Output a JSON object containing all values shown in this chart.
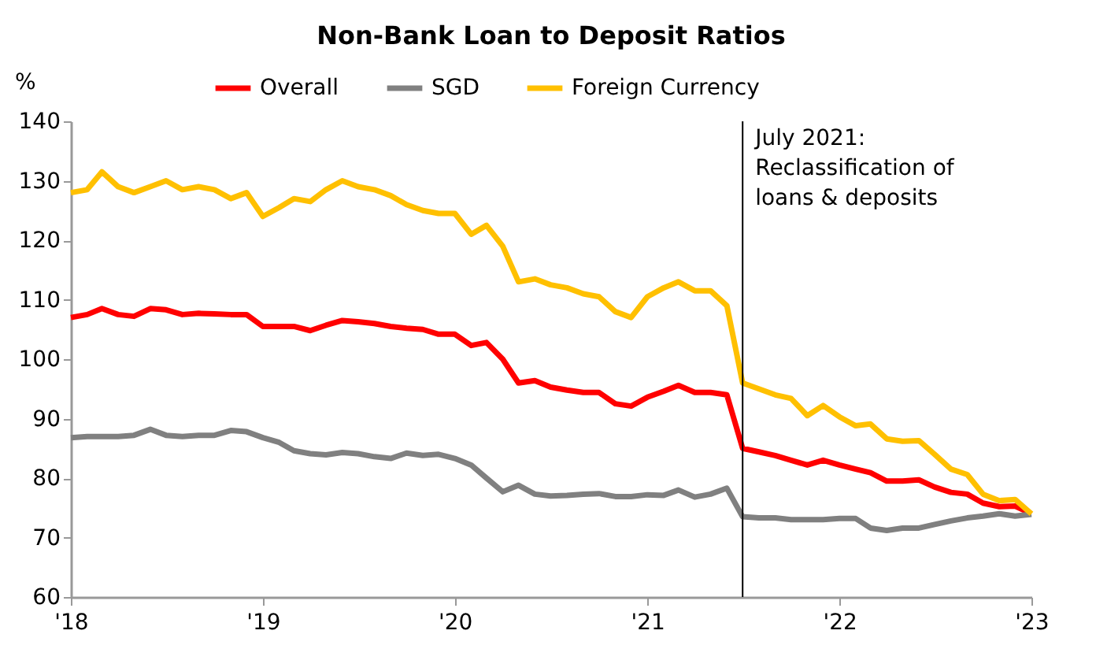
{
  "chart_data": {
    "type": "line",
    "title": "Non-Bank Loan to Deposit Ratios",
    "ylabel": "%",
    "x": [
      "2018-01",
      "2018-02",
      "2018-03",
      "2018-04",
      "2018-05",
      "2018-06",
      "2018-07",
      "2018-08",
      "2018-09",
      "2018-10",
      "2018-11",
      "2018-12",
      "2019-01",
      "2019-02",
      "2019-03",
      "2019-04",
      "2019-05",
      "2019-06",
      "2019-07",
      "2019-08",
      "2019-09",
      "2019-10",
      "2019-11",
      "2019-12",
      "2020-01",
      "2020-02",
      "2020-03",
      "2020-04",
      "2020-05",
      "2020-06",
      "2020-07",
      "2020-08",
      "2020-09",
      "2020-10",
      "2020-11",
      "2020-12",
      "2021-01",
      "2021-02",
      "2021-03",
      "2021-04",
      "2021-05",
      "2021-06",
      "2021-07",
      "2021-08",
      "2021-09",
      "2021-10",
      "2021-11",
      "2021-12",
      "2022-01",
      "2022-02",
      "2022-03",
      "2022-04",
      "2022-05",
      "2022-06",
      "2022-07",
      "2022-08",
      "2022-09",
      "2022-10",
      "2022-11",
      "2022-12",
      "2023-01"
    ],
    "series": [
      {
        "name": "Overall",
        "color": "#ff0000",
        "values": [
          107,
          107.5,
          108.5,
          107.5,
          107.2,
          108.5,
          108.3,
          107.5,
          107.7,
          107.6,
          107.5,
          107.5,
          105.5,
          105.5,
          105.5,
          104.8,
          105.7,
          106.5,
          106.3,
          106,
          105.5,
          105.2,
          105,
          104.2,
          104.2,
          102.3,
          102.8,
          100,
          96,
          96.4,
          95.3,
          94.8,
          94.4,
          94.4,
          92.5,
          92.1,
          93.6,
          94.6,
          95.6,
          94.4,
          94.4,
          94,
          85,
          84.4,
          83.8,
          83,
          82.2,
          83,
          82.2,
          81.5,
          80.9,
          79.5,
          79.5,
          79.7,
          78.5,
          77.6,
          77.3,
          75.8,
          75.2,
          75.3,
          74
        ]
      },
      {
        "name": "SGD",
        "color": "#808080",
        "values": [
          86.8,
          87,
          87,
          87,
          87.2,
          88.2,
          87.2,
          87,
          87.2,
          87.2,
          88,
          87.8,
          86.8,
          86,
          84.6,
          84.1,
          83.9,
          84.3,
          84.1,
          83.6,
          83.3,
          84.2,
          83.8,
          84,
          83.3,
          82.2,
          80,
          77.7,
          78.8,
          77.3,
          77,
          77.1,
          77.3,
          77.4,
          76.9,
          76.9,
          77.2,
          77.1,
          78,
          76.8,
          77.3,
          78.3,
          73.5,
          73.3,
          73.3,
          73,
          73,
          73,
          73.2,
          73.2,
          71.6,
          71.2,
          71.6,
          71.6,
          72.2,
          72.8,
          73.3,
          73.6,
          74,
          73.6,
          73.9
        ]
      },
      {
        "name": "Foreign Currency",
        "color": "#ffc000",
        "values": [
          128,
          128.5,
          131.5,
          129,
          128,
          129,
          130,
          128.5,
          129,
          128.5,
          127,
          128,
          124,
          125.5,
          127,
          126.5,
          128.5,
          130,
          129,
          128.5,
          127.5,
          126,
          125,
          124.5,
          124.5,
          121,
          122.5,
          119,
          113,
          113.5,
          112.5,
          112,
          111,
          110.5,
          108,
          107,
          110.5,
          112,
          113,
          111.5,
          111.5,
          109,
          96,
          95,
          94,
          93.4,
          90.5,
          92.2,
          90.3,
          88.8,
          89.1,
          86.6,
          86.2,
          86.3,
          84,
          81.5,
          80.6,
          77.3,
          76.2,
          76.4,
          74
        ]
      }
    ],
    "xlim": [
      "2018-01",
      "2023-01"
    ],
    "xticks": [
      {
        "value": "2018",
        "label": "'18"
      },
      {
        "value": "2019",
        "label": "'19"
      },
      {
        "value": "2020",
        "label": "'20"
      },
      {
        "value": "2021",
        "label": "'21"
      },
      {
        "value": "2022",
        "label": "'22"
      },
      {
        "value": "2023",
        "label": "'23"
      }
    ],
    "ylim": [
      60,
      140
    ],
    "yticks": [
      60,
      70,
      80,
      90,
      100,
      110,
      120,
      130,
      140
    ],
    "ref_lines": [
      {
        "axis": "x",
        "value": "2021-07",
        "label": "July 2021: Reclassification of loans & deposits",
        "color": "#000000"
      }
    ],
    "grid": false,
    "legend": "top",
    "marker": "none",
    "line_style": "solid"
  }
}
